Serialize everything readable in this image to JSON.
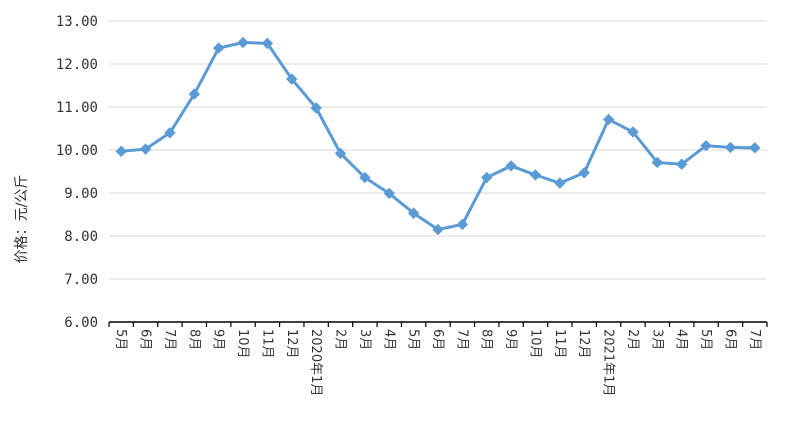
{
  "chart_data": {
    "type": "line",
    "ylabel": "价格：元/公斤",
    "xlabel": "",
    "ylim": [
      6,
      13
    ],
    "yticks": [
      "6.00",
      "7.00",
      "8.00",
      "9.00",
      "10.00",
      "11.00",
      "12.00",
      "13.00"
    ],
    "grid": "horizontal",
    "categories": [
      "5月",
      "6月",
      "7月",
      "8月",
      "9月",
      "10月",
      "11月",
      "12月",
      "2020年1月",
      "2月",
      "3月",
      "4月",
      "5月",
      "6月",
      "7月",
      "8月",
      "9月",
      "10月",
      "11月",
      "12月",
      "2021年1月",
      "2月",
      "3月",
      "4月",
      "5月",
      "6月",
      "7月"
    ],
    "series": [
      {
        "values": [
          9.97,
          10.02,
          10.4,
          11.3,
          12.37,
          12.5,
          12.48,
          11.65,
          10.98,
          9.92,
          9.36,
          8.99,
          8.53,
          8.15,
          8.27,
          9.36,
          9.63,
          9.42,
          9.23,
          9.47,
          10.71,
          10.42,
          9.71,
          9.67,
          10.1,
          10.06,
          10.05
        ],
        "color": "#5b9bd5"
      }
    ]
  }
}
